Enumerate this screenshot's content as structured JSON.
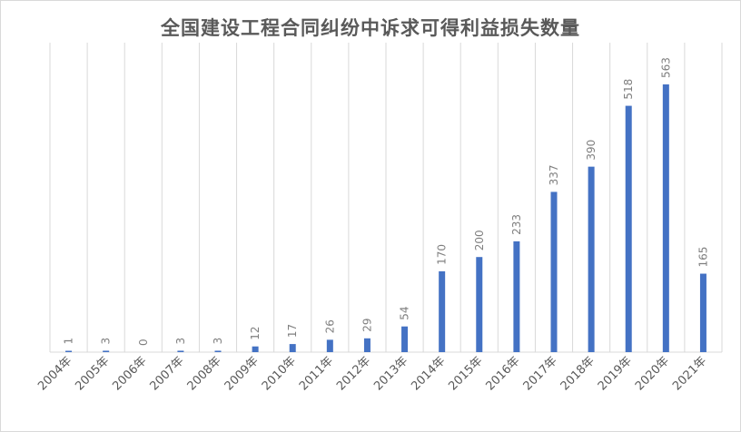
{
  "chart_data": {
    "type": "bar",
    "title": "全国建设工程合同纠纷中诉求可得利益损失数量",
    "xlabel": "",
    "ylabel": "",
    "categories": [
      "2004年",
      "2005年",
      "2006年",
      "2007年",
      "2008年",
      "2009年",
      "2010年",
      "2011年",
      "2012年",
      "2013年",
      "2014年",
      "2015年",
      "2016年",
      "2017年",
      "2018年",
      "2019年",
      "2020年",
      "2021年"
    ],
    "values": [
      1,
      3,
      0,
      3,
      3,
      12,
      17,
      26,
      29,
      54,
      170,
      200,
      233,
      337,
      390,
      518,
      563,
      165
    ],
    "ylim": [
      0,
      563
    ],
    "grid": "vertical",
    "legend": "none",
    "bar_color": "#4472c4",
    "grid_color": "#d9d9d9"
  }
}
